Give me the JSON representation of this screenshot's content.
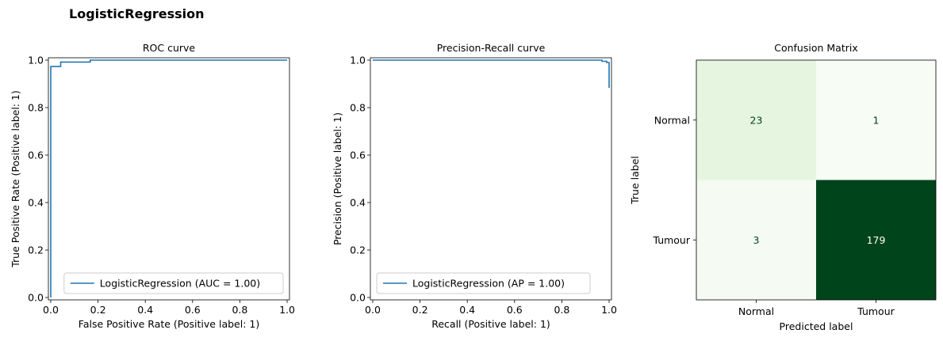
{
  "figure": {
    "title": "LogisticRegression"
  },
  "colors": {
    "line": "#1f77b4",
    "cm_light": "#f7fcf5",
    "cm_mid": "#e5f5e0",
    "cm_dark": "#00441b",
    "text_dark": "#00441b",
    "text_light": "#ffffff"
  },
  "chart_data": [
    {
      "type": "line",
      "title": "ROC curve",
      "xlabel": "False Positive Rate (Positive label: 1)",
      "ylabel": "True Positive Rate (Positive label: 1)",
      "xlim": [
        0,
        1
      ],
      "ylim": [
        0,
        1
      ],
      "xticks": [
        "0.0",
        "0.2",
        "0.4",
        "0.6",
        "0.8",
        "1.0"
      ],
      "yticks": [
        "0.0",
        "0.2",
        "0.4",
        "0.6",
        "0.8",
        "1.0"
      ],
      "legend_position": "lower-right",
      "series": [
        {
          "name": "LogisticRegression (AUC = 1.00)",
          "x": [
            0,
            0,
            0.0,
            0.042,
            0.042,
            0.042,
            0.167,
            0.167,
            1.0
          ],
          "y": [
            0,
            0.005,
            0.973,
            0.973,
            0.978,
            0.992,
            0.992,
            1.0,
            1.0
          ]
        }
      ]
    },
    {
      "type": "line",
      "title": "Precision-Recall curve",
      "xlabel": "Recall (Positive label: 1)",
      "ylabel": "Precision (Positive label: 1)",
      "xlim": [
        0,
        1
      ],
      "ylim": [
        0,
        1
      ],
      "xticks": [
        "0.0",
        "0.2",
        "0.4",
        "0.6",
        "0.8",
        "1.0"
      ],
      "yticks": [
        "0.0",
        "0.2",
        "0.4",
        "0.6",
        "0.8",
        "1.0"
      ],
      "legend_position": "lower-left",
      "series": [
        {
          "name": "LogisticRegression (AP = 1.00)",
          "x": [
            0,
            0.97,
            0.97,
            0.99,
            0.99,
            1.0,
            1.0
          ],
          "y": [
            1.0,
            1.0,
            0.995,
            0.995,
            0.99,
            0.99,
            0.883
          ]
        }
      ]
    },
    {
      "type": "heatmap",
      "title": "Confusion Matrix",
      "xlabel": "Predicted label",
      "ylabel": "True label",
      "x_categories": [
        "Normal",
        "Tumour"
      ],
      "y_categories": [
        "Normal",
        "Tumour"
      ],
      "values": [
        [
          23,
          1
        ],
        [
          3,
          179
        ]
      ],
      "colormap": "Greens"
    }
  ]
}
